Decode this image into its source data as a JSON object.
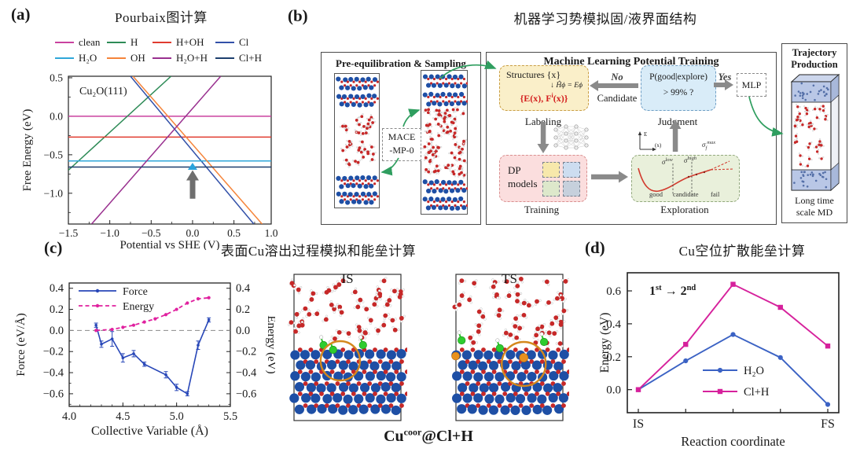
{
  "figure": {
    "panel_a": {
      "label": "(a)",
      "title": "Pourbaix图计算",
      "legend_rows": [
        [
          {
            "name": "clean",
            "color": "#c9429f"
          },
          {
            "name": "H",
            "color": "#2e8b57"
          },
          {
            "name": "H+OH",
            "color": "#e03b2f"
          },
          {
            "name": "Cl",
            "color": "#3250a8"
          }
        ],
        [
          {
            "name": "H₂O",
            "color": "#2fa7d9"
          },
          {
            "name": "OH",
            "color": "#f5843a"
          },
          {
            "name": "H₂O+H",
            "color": "#99308f"
          },
          {
            "name": "Cl+H",
            "color": "#1d3f6e"
          }
        ]
      ]
    },
    "panel_b": {
      "label": "(b)",
      "title": "机器学习势模拟固/液界面结构",
      "left_box": {
        "title": "Pre-equilibration & Sampling",
        "mace1": "MACE",
        "mace2": "-MP-0"
      },
      "middle": {
        "title": "Machine Learning Potential Training",
        "structures1": "Structures {x}",
        "structures2": "↓ Ĥϕ = Eϕ",
        "structures_red1": "{E(x), F",
        "structures_red_sup": "i",
        "structures_red2": "(x)}",
        "labeling": "Labeling",
        "no": "No",
        "candidate": "Candidate",
        "judge1": "P(good|explore)",
        "judge2": "> 99% ?",
        "judgment": "Judgment",
        "yes": "Yes",
        "mlp": "MLP",
        "dp1": "DP",
        "dp2": "models",
        "training": "Training",
        "exploration": "Exploration",
        "sig_low_base": "σ",
        "sig_low_sup": "low",
        "sig_high_base": "σ",
        "sig_high_sup": "high",
        "sig_max_base": "σ",
        "sig_max_sub": "f",
        "sig_max_sup": "max",
        "axis_e": "E",
        "axis_x": "(x)",
        "good": "good",
        "cand": "candidate",
        "fail": "fail"
      },
      "right_box": {
        "t1": "Trajectory",
        "t2": "Production",
        "f1": "Long time",
        "f2": "scale MD"
      }
    },
    "panel_c": {
      "label": "(c)",
      "title": "表面Cu溶出过程模拟和能垒计算",
      "is": "IS",
      "ts": "TS",
      "cap_base": "Cu",
      "cap_sup": "coor",
      "cap_rest": "@Cl+H"
    },
    "panel_d": {
      "label": "(d)",
      "title": "Cu空位扩散能垒计算"
    }
  },
  "chart_data": [
    {
      "id": "pourbaix",
      "type": "line",
      "annotation": "Cu₂O(111)",
      "xlabel": "Potential vs SHE (V)",
      "ylabel": "Free Energy (eV)",
      "xlim": [
        -1.5,
        0.95
      ],
      "ylim": [
        -1.4,
        0.52
      ],
      "xtick_vals": [
        -1.5,
        -1.0,
        -0.5,
        0.0,
        0.5,
        0.95
      ],
      "xticks": [
        "−1.5",
        "−1.0",
        "−0.5",
        "0.0",
        "0.5",
        "1.0"
      ],
      "ytick_vals": [
        0.5,
        0.0,
        -0.5,
        -1.0
      ],
      "yticks": [
        "0.5",
        "0.0",
        "−0.5",
        "−1.0"
      ],
      "series": [
        {
          "name": "clean",
          "color": "#c9429f",
          "kind": "hline",
          "y": 0.0
        },
        {
          "name": "H",
          "color": "#2e8b57",
          "kind": "segment",
          "points": [
            [
              -1.5,
              -0.7
            ],
            [
              -0.26,
              0.52
            ]
          ]
        },
        {
          "name": "H+OH",
          "color": "#e03b2f",
          "kind": "hline",
          "y": -0.27
        },
        {
          "name": "Cl",
          "color": "#3250a8",
          "kind": "segment",
          "points": [
            [
              -0.75,
              0.52
            ],
            [
              0.74,
              -1.4
            ]
          ]
        },
        {
          "name": "H₂O",
          "color": "#2fa7d9",
          "kind": "hline",
          "y": -0.58
        },
        {
          "name": "OH",
          "color": "#f5843a",
          "kind": "segment",
          "points": [
            [
              -0.72,
              0.52
            ],
            [
              0.84,
              -1.4
            ]
          ]
        },
        {
          "name": "H₂O+H",
          "color": "#99308f",
          "kind": "segment",
          "points": [
            [
              -1.22,
              -1.4
            ],
            [
              0.34,
              0.52
            ]
          ]
        },
        {
          "name": "Cl+H",
          "color": "#1d3f6e",
          "kind": "hline",
          "y": -0.66
        }
      ],
      "blue_marker": {
        "x": 0.0,
        "y": -0.655,
        "color": "#2aa3dc"
      },
      "gray_arrow": {
        "x": 0.0,
        "from_y": -1.07,
        "to_y": -0.7,
        "color": "#6f6f6f"
      }
    },
    {
      "id": "force_energy",
      "type": "line",
      "xlabel": "Collective Variable (Å)",
      "ylabel_left": "Force (eV/Å)",
      "ylabel_right": "Energy (eV)",
      "xlim": [
        4.0,
        5.5
      ],
      "ylim": [
        -0.72,
        0.45
      ],
      "xtick_vals": [
        4.0,
        4.5,
        5.0,
        5.5
      ],
      "xticks": [
        "4.0",
        "4.5",
        "5.0",
        "5.5"
      ],
      "ytick_vals": [
        0.4,
        0.2,
        0.0,
        -0.2,
        -0.4,
        -0.6
      ],
      "yticks": [
        "0.4",
        "0.2",
        "0.0",
        "−0.2",
        "−0.4",
        "−0.6"
      ],
      "zero_line": true,
      "legend": [
        "Force",
        "Energy"
      ],
      "series": [
        {
          "name": "Force",
          "color": "#2847b8",
          "style": "solid",
          "x": [
            4.25,
            4.3,
            4.4,
            4.5,
            4.6,
            4.7,
            4.9,
            5.0,
            5.1,
            5.2,
            5.3
          ],
          "y": [
            0.05,
            -0.13,
            -0.08,
            -0.26,
            -0.22,
            -0.32,
            -0.42,
            -0.54,
            -0.6,
            -0.14,
            0.1
          ],
          "yerr": [
            0.02,
            0.03,
            0.07,
            0.04,
            0.03,
            0.02,
            0.03,
            0.03,
            0.02,
            0.04,
            0.02
          ]
        },
        {
          "name": "Energy",
          "color": "#e0219f",
          "style": "dashed",
          "x": [
            4.25,
            4.4,
            4.5,
            4.6,
            4.7,
            4.8,
            4.9,
            5.0,
            5.1,
            5.2,
            5.3
          ],
          "y": [
            0.0,
            0.01,
            0.03,
            0.05,
            0.08,
            0.11,
            0.15,
            0.2,
            0.26,
            0.3,
            0.31
          ]
        }
      ]
    },
    {
      "id": "cu_vacancy_barrier",
      "type": "line",
      "xlabel": "Reaction coordinate",
      "ylabel": "Energy (eV)",
      "annotation": {
        "n1": "1",
        "s1": "st",
        "arrow": " → ",
        "n2": "2",
        "s2": "nd"
      },
      "x_categories": [
        "IS",
        "",
        "",
        "",
        "FS"
      ],
      "ylim": [
        -0.14,
        0.71
      ],
      "ytick_vals": [
        0.0,
        0.2,
        0.4,
        0.6
      ],
      "yticks": [
        "0.0",
        "0.2",
        "0.4",
        "0.6"
      ],
      "series": [
        {
          "name": "H₂O",
          "color": "#3b62c4",
          "marker": "circle",
          "y": [
            0.0,
            0.175,
            0.335,
            0.195,
            -0.09
          ]
        },
        {
          "name": "Cl+H",
          "color": "#d6219c",
          "marker": "square",
          "y": [
            0.0,
            0.275,
            0.64,
            0.5,
            0.265
          ]
        }
      ]
    }
  ]
}
